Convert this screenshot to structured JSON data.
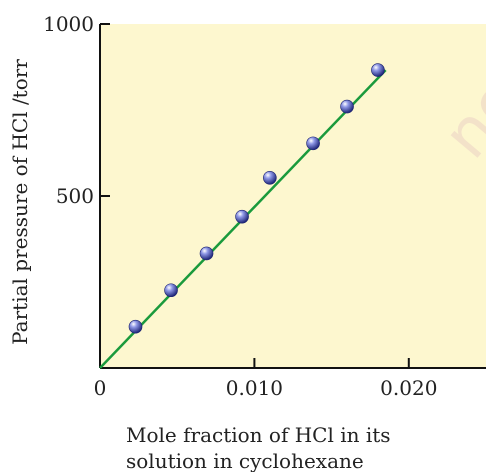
{
  "chart_data": {
    "type": "scatter",
    "title": "",
    "xlabel_lines": [
      "Mole fraction of HCl in its",
      "solution in cyclohexane"
    ],
    "ylabel": "Partial pressure of HCl /torr",
    "xlim": [
      0,
      0.025
    ],
    "ylim": [
      0,
      1000
    ],
    "x_ticks": [
      0,
      0.01,
      0.02
    ],
    "x_tick_labels": [
      "0",
      "0.010",
      "0.020"
    ],
    "y_ticks": [
      500,
      1000
    ],
    "y_tick_labels": [
      "500",
      "1000"
    ],
    "grid": false,
    "legend": "none",
    "series": [
      {
        "x": [
          0.0023,
          0.0046,
          0.0069,
          0.0092,
          0.011,
          0.0138,
          0.016,
          0.018
        ],
        "y": [
          120,
          226,
          333,
          440,
          553,
          653,
          760,
          866
        ]
      }
    ],
    "trend_line": {
      "x": [
        0,
        0.0185
      ],
      "y": [
        0,
        866
      ]
    },
    "watermark_text": "no",
    "colors": {
      "background": "#fdf7cf",
      "line": "#1a9a3c",
      "point": "#3f47a8",
      "axis": "#111111"
    }
  }
}
